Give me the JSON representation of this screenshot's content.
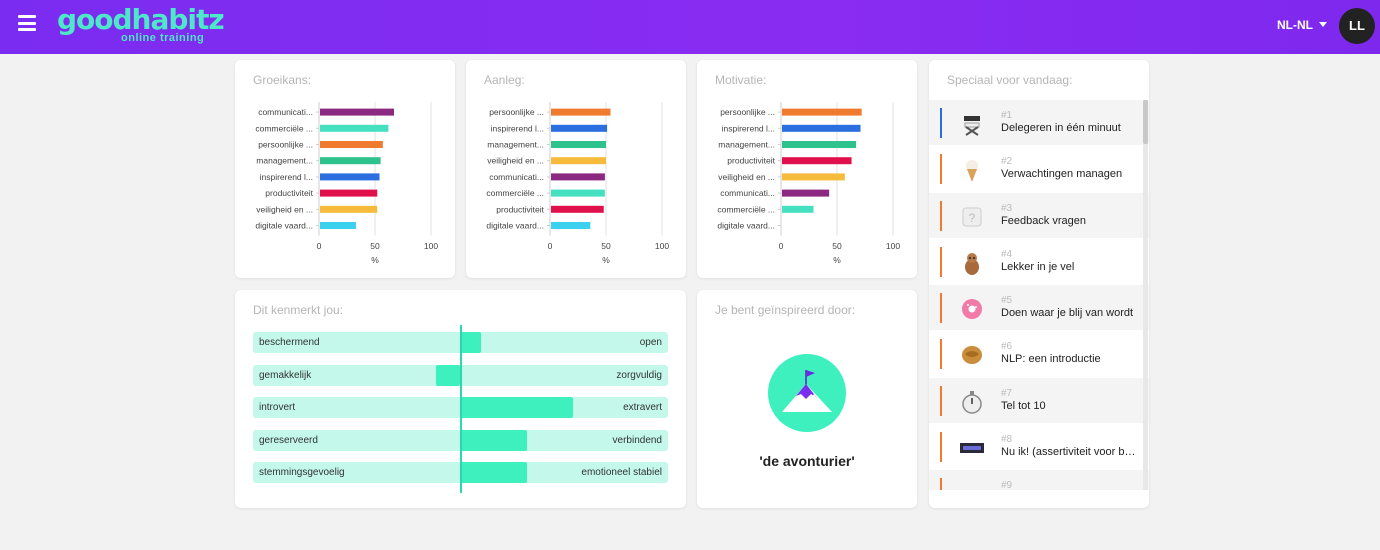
{
  "header": {
    "logo_main": "goodhabitz",
    "logo_sub": "online training",
    "language": "NL-NL",
    "user_initials": "LL",
    "gradient": "#7a2cf0"
  },
  "charts": [
    {
      "title": "Groeikans:",
      "type": "bar",
      "orientation": "horizontal",
      "categories": [
        "communicati...",
        "commerciële ...",
        "persoonlijke ...",
        "management...",
        "inspirerend l...",
        "productiviteit",
        "veiligheid en ...",
        "digitale vaard..."
      ],
      "values": [
        67,
        62,
        57,
        55,
        54,
        52,
        52,
        33
      ],
      "colors": [
        "#8b2882",
        "#45e0c0",
        "#f07b2e",
        "#2ec38d",
        "#2a6ee0",
        "#e0104c",
        "#f7bb3c",
        "#3dd1f0"
      ],
      "xticks": [
        "0",
        "50",
        "100"
      ],
      "xlabel": "%",
      "xlim": [
        0,
        100
      ]
    },
    {
      "title": "Aanleg:",
      "type": "bar",
      "orientation": "horizontal",
      "categories": [
        "persoonlijke ...",
        "inspirerend l...",
        "management...",
        "veiligheid en ...",
        "communicati...",
        "commerciële ...",
        "productiviteit",
        "digitale vaard..."
      ],
      "values": [
        54,
        51,
        50,
        50,
        49,
        49,
        48,
        36
      ],
      "colors": [
        "#f07b2e",
        "#2a6ee0",
        "#2ec38d",
        "#f7bb3c",
        "#8b2882",
        "#45e0c0",
        "#e0104c",
        "#3dd1f0"
      ],
      "xticks": [
        "0",
        "50",
        "100"
      ],
      "xlabel": "%",
      "xlim": [
        0,
        100
      ]
    },
    {
      "title": "Motivatie:",
      "type": "bar",
      "orientation": "horizontal",
      "categories": [
        "persoonlijke ...",
        "inspirerend l...",
        "management...",
        "productiviteit",
        "veiligheid en ...",
        "communicati...",
        "commerciële ...",
        "digitale vaard..."
      ],
      "values": [
        72,
        71,
        67,
        63,
        57,
        43,
        29,
        0
      ],
      "colors": [
        "#f07b2e",
        "#2a6ee0",
        "#2ec38d",
        "#e0104c",
        "#f7bb3c",
        "#8b2882",
        "#45e0c0",
        "#3dd1f0"
      ],
      "xticks": [
        "0",
        "50",
        "100"
      ],
      "xlabel": "%",
      "xlim": [
        0,
        100
      ]
    }
  ],
  "personality": {
    "title": "Dit kenmerkt jou:",
    "traits": [
      {
        "left": "beschermend",
        "right": "open",
        "value": 0.55
      },
      {
        "left": "gemakkelijk",
        "right": "zorgvuldig",
        "value": 0.44
      },
      {
        "left": "introvert",
        "right": "extravert",
        "value": 0.77
      },
      {
        "left": "gereserveerd",
        "right": "verbindend",
        "value": 0.66
      },
      {
        "left": "stemmingsgevoelig",
        "right": "emotioneel stabiel",
        "value": 0.66
      }
    ]
  },
  "inspiration": {
    "title": "Je bent geïnspireerd door:",
    "label": "'de avonturier'",
    "icon": "mountain-flag-icon"
  },
  "special": {
    "title": "Speciaal voor vandaag:",
    "items": [
      {
        "num": "#1",
        "title": "Delegeren in één minuut",
        "icon": "directors-chair-icon",
        "accent": "#2a6ee0"
      },
      {
        "num": "#2",
        "title": "Verwachtingen managen",
        "icon": "ice-cream-icon",
        "accent": "#f07b2e"
      },
      {
        "num": "#3",
        "title": "Feedback vragen",
        "icon": "question-cube-icon",
        "accent": "#f07b2e"
      },
      {
        "num": "#4",
        "title": "Lekker in je vel",
        "icon": "dog-icon",
        "accent": "#f07b2e"
      },
      {
        "num": "#5",
        "title": "Doen waar je blij van wordt",
        "icon": "donut-icon",
        "accent": "#f07b2e"
      },
      {
        "num": "#6",
        "title": "NLP: een introductie",
        "icon": "walnut-icon",
        "accent": "#f07b2e"
      },
      {
        "num": "#7",
        "title": "Tel tot 10",
        "icon": "stopwatch-icon",
        "accent": "#f07b2e"
      },
      {
        "num": "#8",
        "title": "Nu ik! (assertiviteit voor be...",
        "icon": "name-badge-icon",
        "accent": "#f07b2e"
      },
      {
        "num": "#9",
        "title": "",
        "icon": "item-icon",
        "accent": "#f07b2e"
      }
    ]
  }
}
